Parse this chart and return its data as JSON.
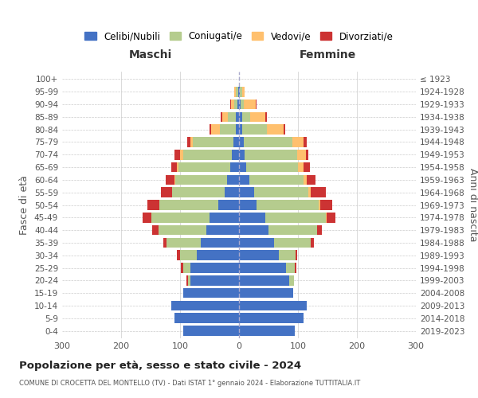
{
  "age_groups": [
    "0-4",
    "5-9",
    "10-14",
    "15-19",
    "20-24",
    "25-29",
    "30-34",
    "35-39",
    "40-44",
    "45-49",
    "50-54",
    "55-59",
    "60-64",
    "65-69",
    "70-74",
    "75-79",
    "80-84",
    "85-89",
    "90-94",
    "95-99",
    "100+"
  ],
  "birth_years": [
    "2019-2023",
    "2014-2018",
    "2009-2013",
    "2004-2008",
    "1999-2003",
    "1994-1998",
    "1989-1993",
    "1984-1988",
    "1979-1983",
    "1974-1978",
    "1969-1973",
    "1964-1968",
    "1959-1963",
    "1954-1958",
    "1949-1953",
    "1944-1948",
    "1939-1943",
    "1934-1938",
    "1929-1933",
    "1924-1928",
    "≤ 1923"
  ],
  "maschi": {
    "celibi": [
      95,
      110,
      115,
      95,
      82,
      82,
      72,
      65,
      55,
      50,
      35,
      25,
      20,
      15,
      12,
      10,
      5,
      5,
      3,
      2,
      0
    ],
    "coniugati": [
      0,
      0,
      0,
      0,
      5,
      12,
      28,
      58,
      82,
      98,
      100,
      88,
      88,
      88,
      83,
      68,
      28,
      14,
      5,
      3,
      0
    ],
    "vedovi": [
      0,
      0,
      0,
      0,
      0,
      0,
      0,
      0,
      0,
      0,
      0,
      0,
      2,
      2,
      5,
      5,
      14,
      10,
      5,
      3,
      0
    ],
    "divorziati": [
      0,
      0,
      0,
      0,
      2,
      5,
      5,
      5,
      10,
      15,
      20,
      20,
      15,
      10,
      10,
      5,
      3,
      2,
      2,
      0,
      0
    ]
  },
  "femmine": {
    "nubili": [
      95,
      110,
      115,
      92,
      85,
      80,
      68,
      60,
      50,
      45,
      30,
      25,
      18,
      12,
      10,
      8,
      5,
      5,
      3,
      2,
      0
    ],
    "coniugate": [
      0,
      0,
      0,
      0,
      8,
      15,
      28,
      62,
      82,
      102,
      105,
      92,
      92,
      88,
      88,
      82,
      42,
      14,
      5,
      3,
      0
    ],
    "vedove": [
      0,
      0,
      0,
      0,
      0,
      0,
      0,
      0,
      0,
      2,
      3,
      5,
      5,
      10,
      15,
      20,
      28,
      25,
      20,
      5,
      0
    ],
    "divorziate": [
      0,
      0,
      0,
      0,
      0,
      2,
      3,
      5,
      8,
      15,
      20,
      25,
      15,
      10,
      5,
      5,
      3,
      3,
      2,
      0,
      0
    ]
  },
  "colors": {
    "celibi": "#4472c4",
    "coniugati": "#b5cc8e",
    "vedovi": "#ffc06e",
    "divorziati": "#cc3333"
  },
  "xlim": 300,
  "title": "Popolazione per età, sesso e stato civile - 2024",
  "subtitle": "COMUNE DI CROCETTA DEL MONTELLO (TV) - Dati ISTAT 1° gennaio 2024 - Elaborazione TUTTITALIA.IT",
  "ylabel": "Fasce di età",
  "ylabel_right": "Anni di nascita",
  "xlabel_maschi": "Maschi",
  "xlabel_femmine": "Femmine",
  "legend_labels": [
    "Celibi/Nubili",
    "Coniugati/e",
    "Vedovi/e",
    "Divorziati/e"
  ],
  "background_color": "#ffffff",
  "grid_color": "#cccccc"
}
